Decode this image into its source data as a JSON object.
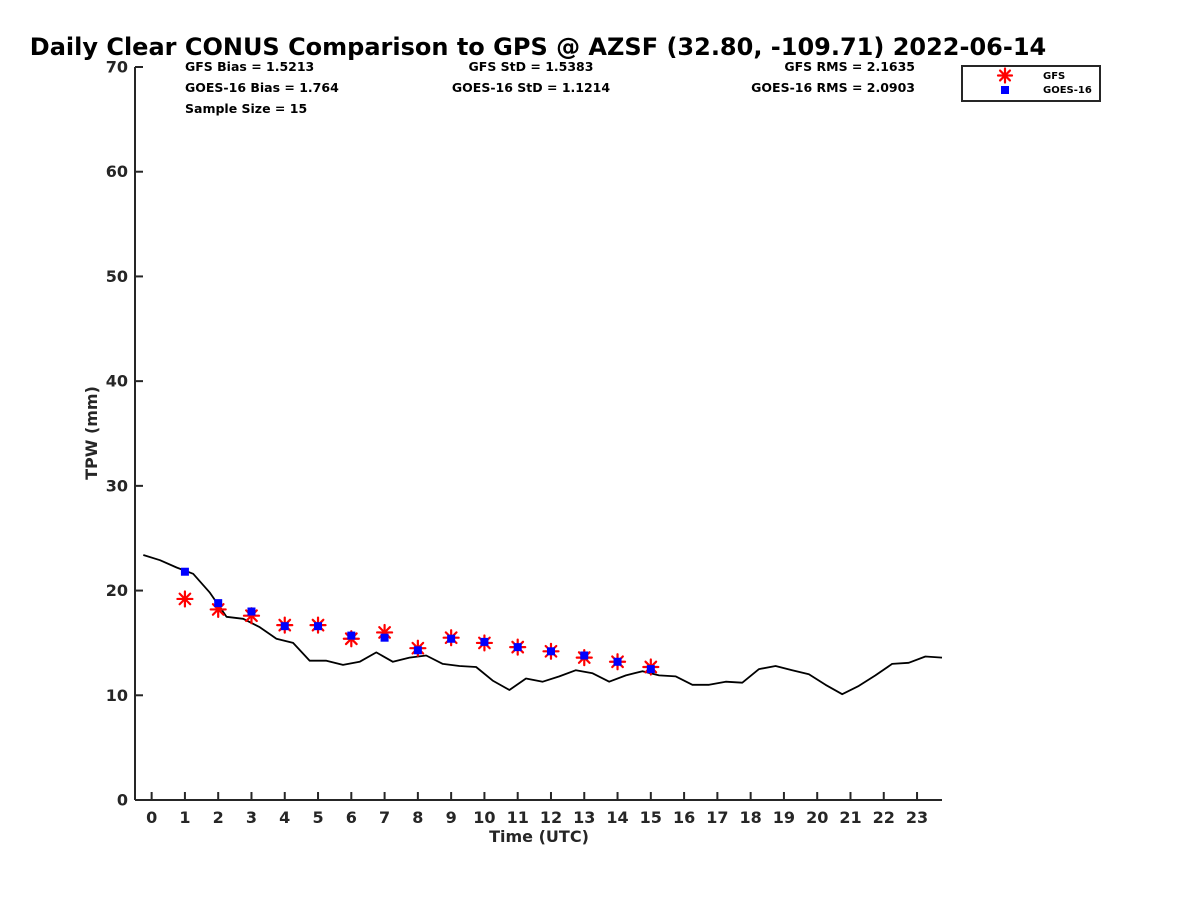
{
  "chart_data": {
    "type": "scatter",
    "title": "Daily Clear CONUS Comparison to GPS @ AZSF (32.80, -109.71) 2022-06-14",
    "xlabel": "Time (UTC)",
    "ylabel": "TPW (mm)",
    "xlim": [
      -0.5,
      23.75
    ],
    "ylim": [
      0,
      70
    ],
    "xticks": [
      0,
      1,
      2,
      3,
      4,
      5,
      6,
      7,
      8,
      9,
      10,
      11,
      12,
      13,
      14,
      15,
      16,
      17,
      18,
      19,
      20,
      21,
      22,
      23
    ],
    "yticks": [
      0,
      10,
      20,
      30,
      40,
      50,
      60,
      70
    ],
    "grid": false,
    "legend_position": "top-right",
    "stats": [
      "GFS Bias = 1.5213",
      "GFS StD = 1.5383",
      "GFS RMS = 2.1635",
      "GOES-16 Bias = 1.764",
      "GOES-16 StD = 1.1214",
      "GOES-16 RMS = 2.0903",
      "Sample Size = 15"
    ],
    "series": [
      {
        "name": "GFS",
        "marker": "asterisk",
        "color": "#ff0000",
        "x": [
          1,
          2,
          3,
          4,
          5,
          6,
          7,
          8,
          9,
          10,
          11,
          12,
          13,
          14,
          15
        ],
        "y": [
          19.2,
          18.2,
          17.6,
          16.7,
          16.7,
          15.4,
          16.0,
          14.5,
          15.5,
          15.0,
          14.6,
          14.2,
          13.6,
          13.2,
          12.7
        ]
      },
      {
        "name": "GOES-16",
        "marker": "square",
        "color": "#0000ff",
        "x": [
          1,
          2,
          3,
          4,
          5,
          6,
          7,
          8,
          9,
          10,
          11,
          12,
          13,
          14,
          15
        ],
        "y": [
          21.8,
          18.8,
          18.0,
          16.6,
          16.6,
          15.7,
          15.5,
          14.3,
          15.4,
          15.1,
          14.6,
          14.2,
          13.8,
          13.2,
          12.5
        ]
      },
      {
        "marker": "line",
        "color": "#000000",
        "x": [
          -0.25,
          0.25,
          0.75,
          1.25,
          1.75,
          2.25,
          2.75,
          3.25,
          3.75,
          4.25,
          4.75,
          5.25,
          5.75,
          6.25,
          6.75,
          7.25,
          7.75,
          8.25,
          8.75,
          9.25,
          9.75,
          10.25,
          10.75,
          11.25,
          11.75,
          12.25,
          12.75,
          13.25,
          13.75,
          14.25,
          14.75,
          15.25,
          15.75,
          16.25,
          16.75,
          17.25,
          17.75,
          18.25,
          18.75,
          19.25,
          19.75,
          20.25,
          20.75,
          21.25,
          21.75,
          22.25,
          22.75,
          23.25,
          23.75
        ],
        "y": [
          23.4,
          22.9,
          22.2,
          21.6,
          19.8,
          17.5,
          17.3,
          16.5,
          15.4,
          15.0,
          13.3,
          13.3,
          12.9,
          13.2,
          14.1,
          13.2,
          13.6,
          13.8,
          13.0,
          12.8,
          12.7,
          11.4,
          10.5,
          11.6,
          11.3,
          11.8,
          12.4,
          12.1,
          11.3,
          11.9,
          12.3,
          11.9,
          11.8,
          11.0,
          11.0,
          11.3,
          11.2,
          12.5,
          12.8,
          12.4,
          12.0,
          11.0,
          10.1,
          10.9,
          11.9,
          13.0,
          13.1,
          13.7,
          13.6
        ]
      }
    ]
  }
}
